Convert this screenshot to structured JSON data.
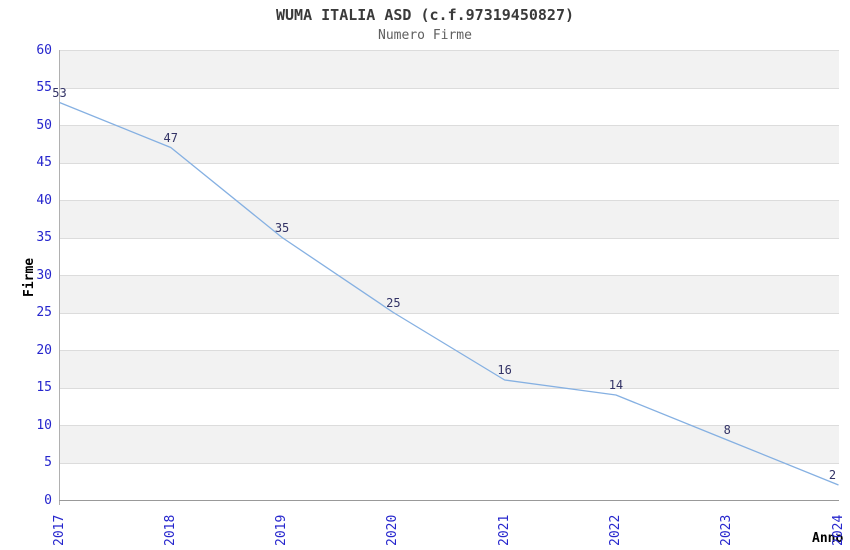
{
  "chart_data": {
    "type": "line",
    "title": "WUMA ITALIA ASD (c.f.97319450827)",
    "subtitle": "Numero Firme",
    "xlabel": "Anno",
    "ylabel": "Firme",
    "categories": [
      "2017",
      "2018",
      "2019",
      "2020",
      "2021",
      "2022",
      "2023",
      "2024"
    ],
    "values": [
      53,
      47,
      35,
      25,
      16,
      14,
      8,
      2
    ],
    "point_labels": [
      "53",
      "47",
      "35",
      "25",
      "16",
      "14",
      "8",
      "2"
    ],
    "y_ticks": [
      0,
      5,
      10,
      15,
      20,
      25,
      30,
      35,
      40,
      45,
      50,
      55,
      60
    ],
    "ylim": [
      0,
      60
    ],
    "grid": "horizontal gridlines every 5 with alternating gray bands",
    "legend": "none",
    "colors": {
      "line": "#85b0e2",
      "tick_label": "#2626cd",
      "point_label": "#333366",
      "band_fill": "#f2f2f2",
      "gridline": "#dcdcdc",
      "title": "#3a3a3a",
      "subtitle": "#5f5f5f",
      "axis_title": "#000000"
    }
  }
}
